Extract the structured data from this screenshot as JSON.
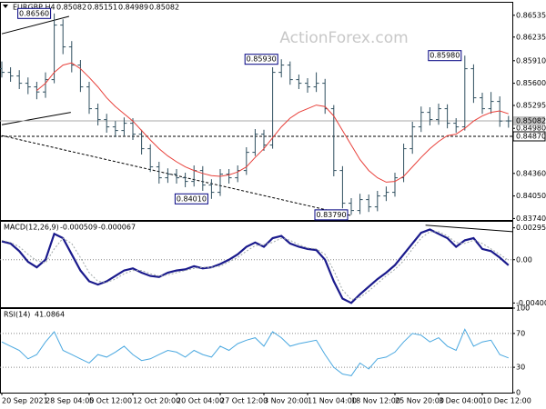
{
  "chart_data": [
    {
      "type": "ohlc",
      "title": "EURGBP,H4",
      "watermark": "ActionForex.com",
      "ohlc": {
        "open": [
          0.858,
          0.8575,
          0.857,
          0.856,
          0.8555,
          0.8548,
          0.8565,
          0.864,
          0.861,
          0.8585,
          0.8555,
          0.8525,
          0.851,
          0.85,
          0.8495,
          0.8505,
          0.849,
          0.847,
          0.8445,
          0.843,
          0.8435,
          0.843,
          0.8425,
          0.844,
          0.842,
          0.841,
          0.8435,
          0.843,
          0.844,
          0.8465,
          0.849,
          0.8475,
          0.8575,
          0.8585,
          0.8565,
          0.856,
          0.8555,
          0.856,
          0.8525,
          0.844,
          0.8395,
          0.8385,
          0.84,
          0.839,
          0.8405,
          0.841,
          0.843,
          0.847,
          0.85,
          0.852,
          0.851,
          0.8525,
          0.8505,
          0.85,
          0.858,
          0.854,
          0.8525,
          0.8535,
          0.85082
        ],
        "high": [
          0.859,
          0.8582,
          0.8578,
          0.8568,
          0.8562,
          0.8575,
          0.8656,
          0.8648,
          0.8618,
          0.8592,
          0.8562,
          0.8532,
          0.8518,
          0.8508,
          0.8513,
          0.8512,
          0.8496,
          0.8476,
          0.8452,
          0.8443,
          0.8442,
          0.8437,
          0.8447,
          0.8446,
          0.8428,
          0.8442,
          0.8442,
          0.8447,
          0.8472,
          0.8497,
          0.8496,
          0.8582,
          0.8593,
          0.859,
          0.8572,
          0.8567,
          0.8575,
          0.8566,
          0.853,
          0.8446,
          0.8402,
          0.8408,
          0.8407,
          0.8412,
          0.8418,
          0.8437,
          0.8477,
          0.8507,
          0.8528,
          0.8527,
          0.8532,
          0.8531,
          0.8512,
          0.8598,
          0.8586,
          0.8547,
          0.8548,
          0.8542,
          0.85151
        ],
        "low": [
          0.8568,
          0.8562,
          0.8552,
          0.8545,
          0.8538,
          0.854,
          0.856,
          0.86,
          0.8575,
          0.8548,
          0.8518,
          0.8502,
          0.8492,
          0.8486,
          0.8488,
          0.8482,
          0.8462,
          0.8438,
          0.8422,
          0.8423,
          0.8422,
          0.8417,
          0.8418,
          0.8412,
          0.8401,
          0.8405,
          0.8422,
          0.8424,
          0.8434,
          0.846,
          0.8467,
          0.847,
          0.8568,
          0.8558,
          0.8552,
          0.8547,
          0.8548,
          0.8518,
          0.8432,
          0.8388,
          0.8379,
          0.838,
          0.8383,
          0.8384,
          0.8398,
          0.8404,
          0.8424,
          0.8463,
          0.8493,
          0.8502,
          0.8503,
          0.8498,
          0.8492,
          0.8495,
          0.8533,
          0.8518,
          0.8518,
          0.85,
          0.84989
        ],
        "close": [
          0.8575,
          0.857,
          0.856,
          0.8555,
          0.8548,
          0.8565,
          0.864,
          0.861,
          0.8585,
          0.8555,
          0.8525,
          0.851,
          0.85,
          0.8495,
          0.8505,
          0.849,
          0.847,
          0.8445,
          0.843,
          0.8435,
          0.843,
          0.8425,
          0.844,
          0.842,
          0.841,
          0.8435,
          0.843,
          0.844,
          0.8465,
          0.849,
          0.8475,
          0.8575,
          0.8585,
          0.8565,
          0.856,
          0.8555,
          0.856,
          0.8525,
          0.844,
          0.8395,
          0.8385,
          0.84,
          0.839,
          0.8405,
          0.841,
          0.843,
          0.847,
          0.85,
          0.852,
          0.851,
          0.8525,
          0.8505,
          0.85,
          0.858,
          0.854,
          0.8525,
          0.8535,
          0.8508,
          0.85082
        ]
      },
      "color": "#2f4f5f",
      "series": [
        {
          "color": "#e8403a",
          "values": [
            null,
            null,
            null,
            null,
            0.855,
            0.856,
            0.8575,
            0.8585,
            0.8588,
            0.858,
            0.8568,
            0.8555,
            0.854,
            0.8528,
            0.8518,
            0.8508,
            0.8495,
            0.8482,
            0.847,
            0.846,
            0.8452,
            0.8445,
            0.844,
            0.8436,
            0.8433,
            0.8432,
            0.8434,
            0.8438,
            0.8445,
            0.8458,
            0.847,
            0.8485,
            0.85,
            0.8512,
            0.852,
            0.8525,
            0.853,
            0.8528,
            0.8515,
            0.8495,
            0.8475,
            0.8455,
            0.844,
            0.843,
            0.8424,
            0.8425,
            0.8432,
            0.8445,
            0.8458,
            0.847,
            0.848,
            0.8488,
            0.849,
            0.8498,
            0.8508,
            0.8515,
            0.852,
            0.8522,
            0.8518
          ]
        }
      ],
      "ylim": [
        0.8372,
        0.8672
      ],
      "yticks": [
        0.86535,
        0.86235,
        {
          "value": 0.8591,
          "label": "0.85910"
        },
        {
          "value": 0.856,
          "label": "0.85600"
        },
        0.85295,
        {
          "value": 0.8498,
          "label": "0.84980"
        },
        {
          "value": 0.8436,
          "label": "0.84360"
        },
        {
          "value": 0.8405,
          "label": "0.84050"
        },
        {
          "value": 0.8374,
          "label": "0.83740"
        }
      ],
      "hlines": [
        {
          "value": 0.8487,
          "label": "0.84870"
        }
      ],
      "annotations": [
        {
          "x": 6,
          "value": 0.8656,
          "label": "0.86560"
        },
        {
          "x": 32,
          "value": 0.8593,
          "label": "0.85930"
        },
        {
          "x": 53,
          "value": 0.8598,
          "label": "0.85980"
        },
        {
          "x": 24,
          "value": 0.8401,
          "label": "0.84010"
        },
        {
          "x": 40,
          "value": 0.8379,
          "label": "0.83790"
        }
      ],
      "trendlines": [
        {
          "x": [
            0,
            40
          ],
          "y": [
            0.8488,
            0.8378
          ],
          "style": "dashed"
        },
        {
          "x": [
            0,
            7.7
          ],
          "y": [
            0.8628,
            0.8652
          ],
          "style": "solid"
        },
        {
          "x": [
            0,
            7.9
          ],
          "y": [
            0.8503,
            0.852
          ],
          "style": "solid"
        }
      ]
    },
    {
      "type": "line",
      "title": "MACD(12,26,9)",
      "series": [
        {
          "color": "#1a1a8c",
          "values": [
            0.0017,
            0.0015,
            0.0008,
            -0.0002,
            -0.0007,
            0.0,
            0.0024,
            0.002,
            0.0005,
            -0.001,
            -0.002,
            -0.0023,
            -0.002,
            -0.0015,
            -0.001,
            -0.0008,
            -0.0012,
            -0.0015,
            -0.0016,
            -0.0012,
            -0.001,
            -0.0009,
            -0.0006,
            -0.0008,
            -0.0007,
            -0.0004,
            0.0,
            0.0005,
            0.0012,
            0.0016,
            0.0012,
            0.002,
            0.0022,
            0.0015,
            0.0012,
            0.001,
            0.0009,
            0.0,
            -0.002,
            -0.0036,
            -0.004,
            -0.0032,
            -0.0025,
            -0.0018,
            -0.0012,
            -0.0005,
            0.0005,
            0.0015,
            0.0025,
            0.0028,
            0.0024,
            0.002,
            0.0012,
            0.0018,
            0.002,
            0.001,
            0.0008,
            0.0002,
            -0.000509
          ]
        },
        {
          "color": "#a0a8a8",
          "values": [
            0.0018,
            0.0016,
            0.0012,
            0.0005,
            -0.0001,
            -0.0003,
            0.001,
            0.002,
            0.0015,
            0.0002,
            -0.0012,
            -0.002,
            -0.0021,
            -0.0018,
            -0.0013,
            -0.001,
            -0.001,
            -0.0013,
            -0.0015,
            -0.0014,
            -0.0012,
            -0.001,
            -0.0008,
            -0.0007,
            -0.0007,
            -0.0006,
            -0.0002,
            0.0002,
            0.0008,
            0.0013,
            0.0014,
            0.0016,
            0.002,
            0.0018,
            0.0014,
            0.0011,
            0.001,
            0.0005,
            -0.001,
            -0.0028,
            -0.0037,
            -0.0035,
            -0.0029,
            -0.0022,
            -0.0015,
            -0.0009,
            -0.0001,
            0.001,
            0.002,
            0.0026,
            0.0026,
            0.0022,
            0.0016,
            0.0015,
            0.0018,
            0.0015,
            0.001,
            0.0005,
            -6.7e-05
          ]
        }
      ],
      "ylim": [
        -0.0044,
        0.0036
      ],
      "yticks": [
        0.002955,
        {
          "value": 0,
          "label": "0.00"
        },
        -0.004009
      ],
      "levels": [
        0
      ],
      "trendlines": [
        {
          "x": [
            48.5,
            58.5
          ],
          "y": [
            0.0032,
            0.0026
          ],
          "style": "solid"
        }
      ]
    },
    {
      "type": "line",
      "title": "RSI(14)",
      "series": [
        {
          "color": "#4aa8e0",
          "values": [
            60,
            55,
            50,
            40,
            45,
            60,
            72,
            50,
            45,
            40,
            35,
            45,
            42,
            48,
            55,
            45,
            38,
            40,
            45,
            50,
            48,
            42,
            50,
            45,
            42,
            55,
            50,
            58,
            62,
            65,
            55,
            72,
            65,
            55,
            58,
            60,
            62,
            45,
            30,
            22,
            20,
            35,
            28,
            40,
            42,
            48,
            60,
            70,
            68,
            60,
            65,
            55,
            50,
            75,
            55,
            60,
            62,
            45,
            41.0864
          ]
        }
      ],
      "ylim": [
        0,
        100
      ],
      "yticks": [
        100,
        70,
        30,
        0
      ],
      "levels": [
        70,
        30
      ],
      "xticks": [
        {
          "value": 0,
          "label": "20 Sep 2021"
        },
        {
          "value": 5,
          "label": "28 Sep 04:00"
        },
        {
          "value": 10,
          "label": "5 Oct 12:00"
        },
        {
          "value": 15,
          "label": "12 Oct 20:00"
        },
        {
          "value": 20,
          "label": "20 Oct 04:00"
        },
        {
          "value": 25,
          "label": "27 Oct 12:00"
        },
        {
          "value": 30,
          "label": "3 Nov 20:00"
        },
        {
          "value": 35,
          "label": "11 Nov 04:00"
        },
        {
          "value": 40,
          "label": "18 Nov 12:00"
        },
        {
          "value": 45,
          "label": "25 Nov 20:00"
        },
        {
          "value": 50,
          "label": "3 Dec 04:00"
        },
        {
          "value": 55,
          "label": "10 Dec 12:00"
        }
      ]
    }
  ]
}
